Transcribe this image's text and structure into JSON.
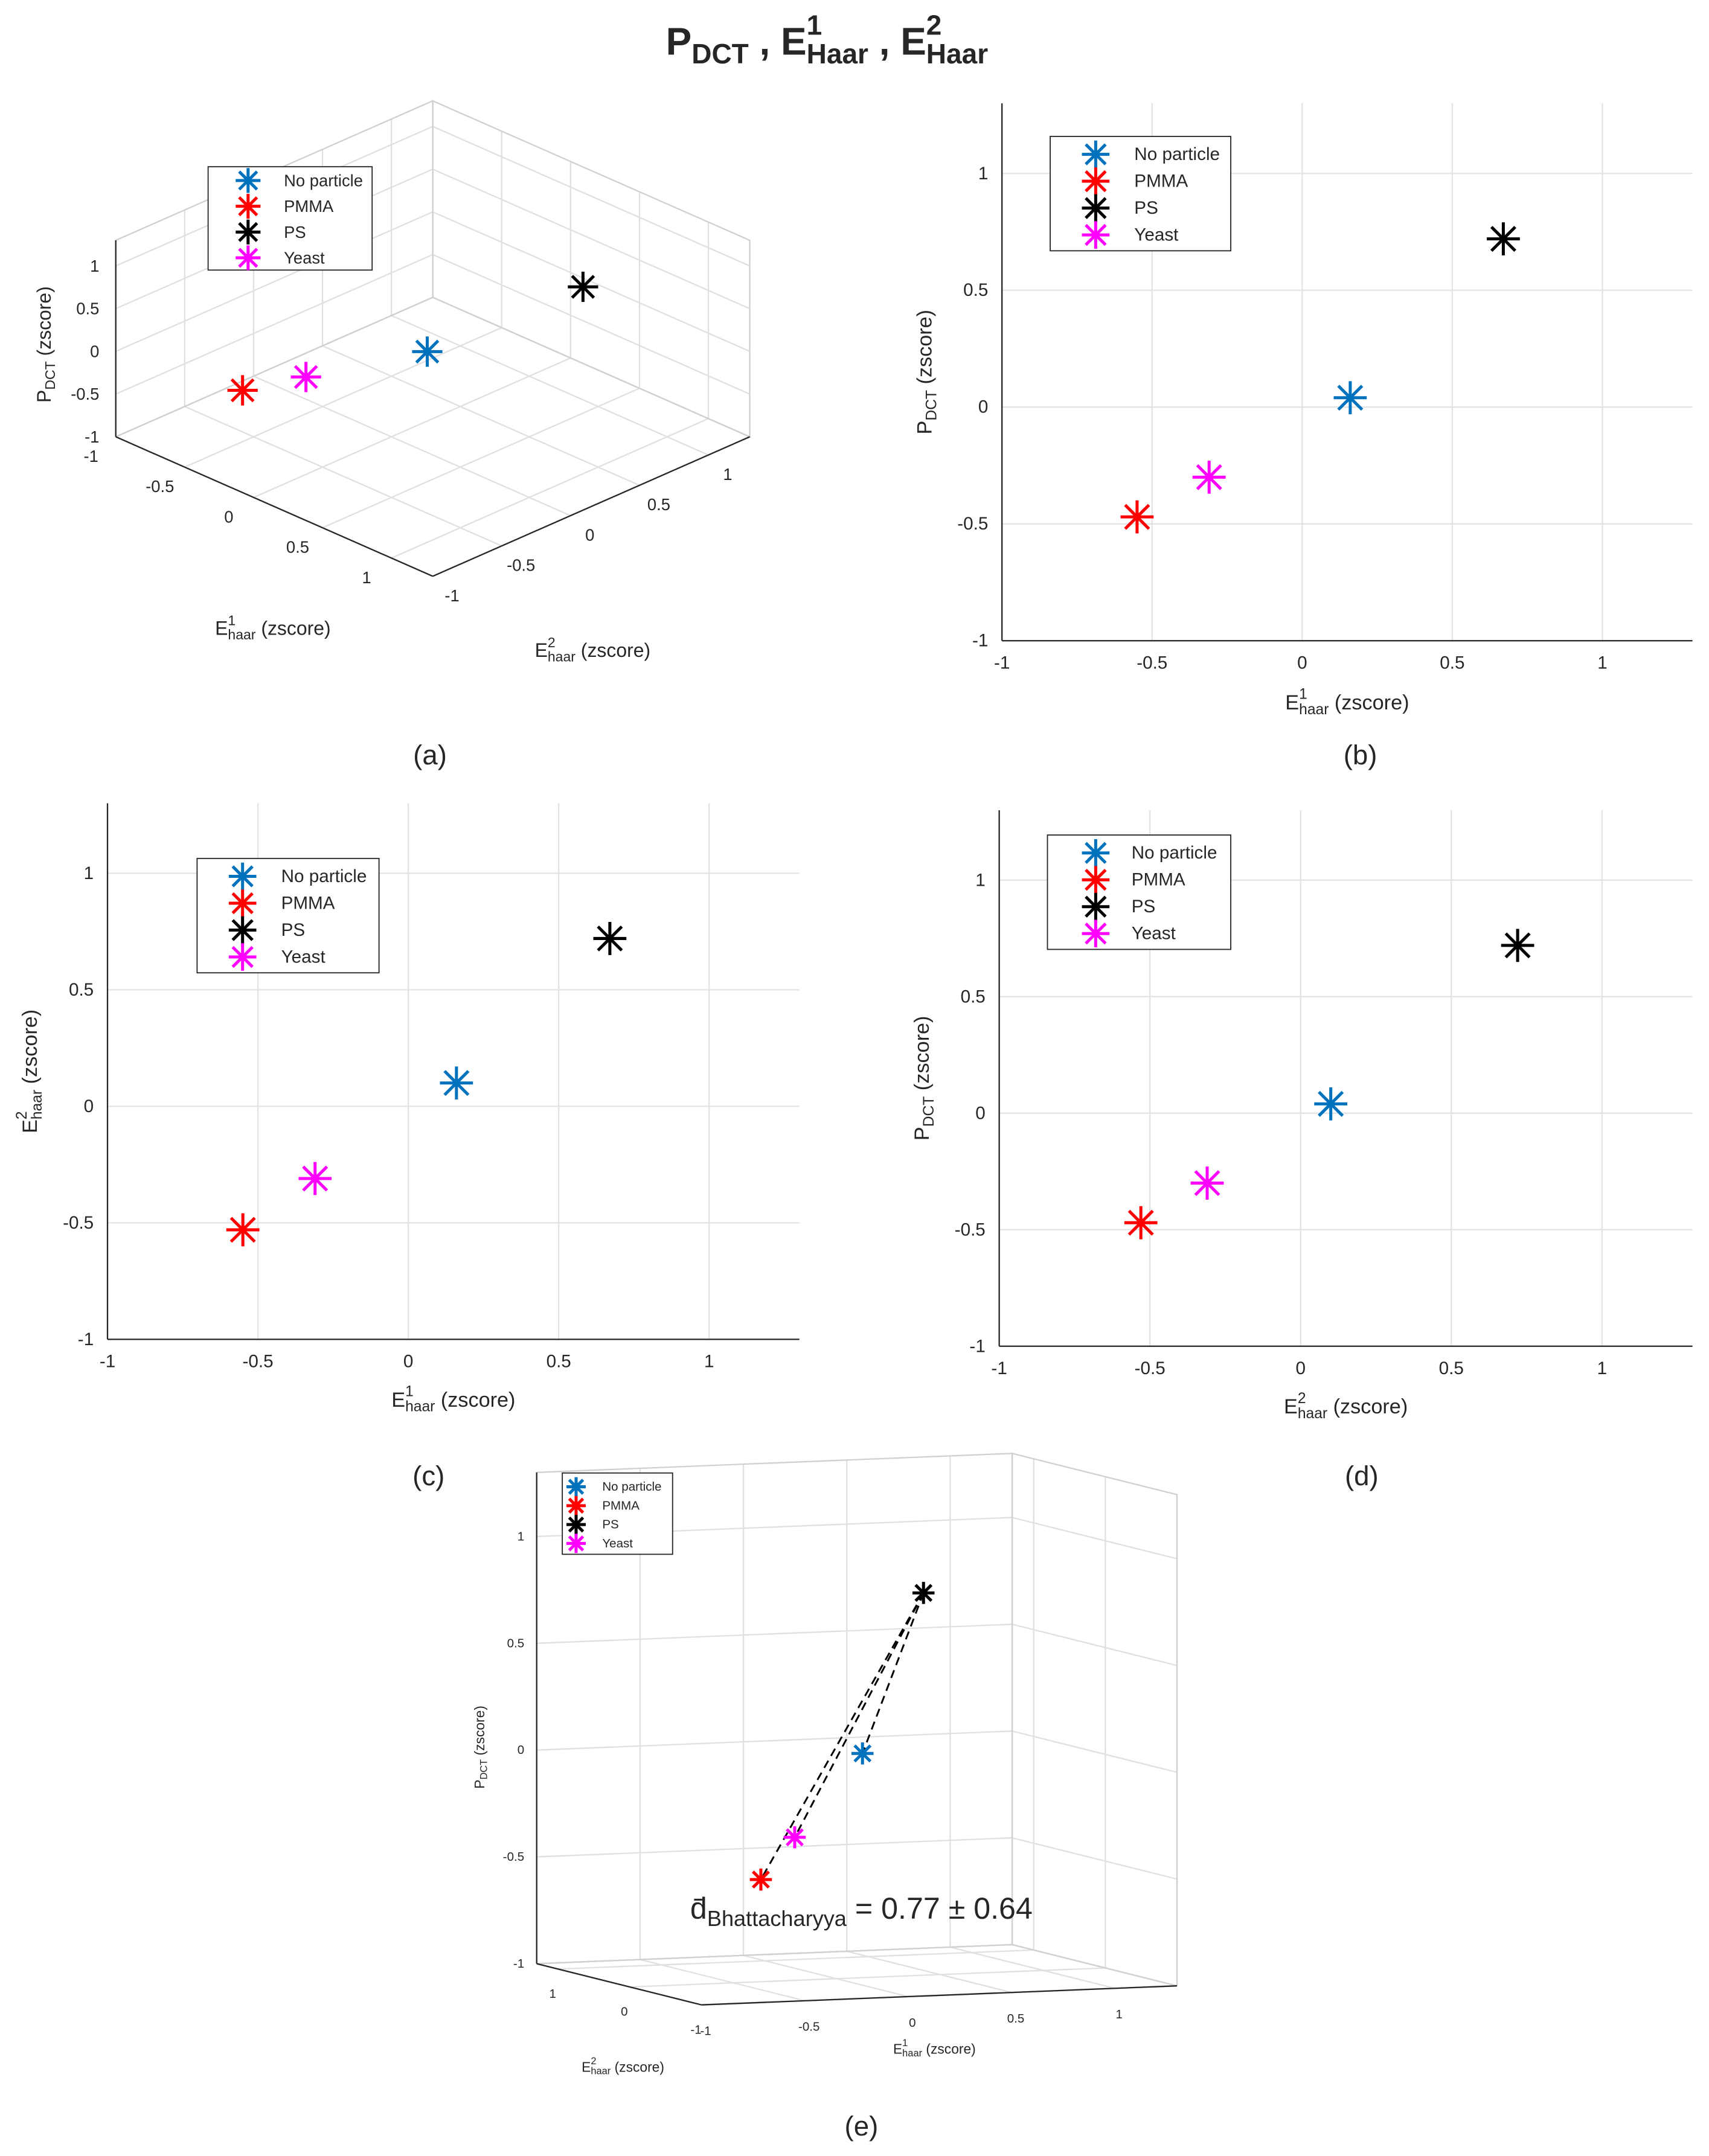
{
  "title": [
    {
      "text": "P"
    },
    {
      "text": "DCT",
      "pos": "sub"
    },
    {
      "text": " , E"
    },
    {
      "text": "1",
      "pos": "sup"
    },
    {
      "text": "Haar",
      "pos": "sub"
    },
    {
      "text": " , E"
    },
    {
      "text": "2",
      "pos": "sup"
    },
    {
      "text": "Haar",
      "pos": "sub"
    }
  ],
  "chart_data": [
    {
      "type": "scatter3d",
      "label": "(a)",
      "xlabel": [
        {
          "text": "E"
        },
        {
          "text": "1",
          "pos": "sup"
        },
        {
          "text": "haar",
          "pos": "sub"
        },
        {
          "text": " (zscore)"
        }
      ],
      "ylabel": [
        {
          "text": "E"
        },
        {
          "text": "2",
          "pos": "sup"
        },
        {
          "text": "haar",
          "pos": "sub"
        },
        {
          "text": " (zscore)"
        }
      ],
      "zlabel": [
        {
          "text": "P"
        },
        {
          "text": "DCT",
          "pos": "sub"
        },
        {
          "text": " (zscore)"
        }
      ],
      "xlim": [
        -1,
        1.3
      ],
      "ylim": [
        -1,
        1.3
      ],
      "zlim": [
        -1,
        1.3
      ],
      "xticks": [
        -1,
        -0.5,
        0,
        0.5,
        1
      ],
      "yticks": [
        -1,
        -0.5,
        0,
        0.5,
        1
      ],
      "zticks": [
        -1,
        -0.5,
        0,
        0.5,
        1
      ],
      "grid": true,
      "series": [
        {
          "name": "No particle",
          "color": "#0072bd",
          "x": [
            0.16
          ],
          "y": [
            0.1
          ],
          "z": [
            0.04
          ]
        },
        {
          "name": "PMMA",
          "color": "#ff0000",
          "x": [
            -0.55
          ],
          "y": [
            -0.53
          ],
          "z": [
            -0.47
          ]
        },
        {
          "name": "PS",
          "color": "#000000",
          "x": [
            0.67
          ],
          "y": [
            0.72
          ],
          "z": [
            0.72
          ]
        },
        {
          "name": "Yeast",
          "color": "#ff00ff",
          "x": [
            -0.31
          ],
          "y": [
            -0.31
          ],
          "z": [
            -0.3
          ]
        }
      ]
    },
    {
      "type": "scatter",
      "label": "(b)",
      "xlabel": [
        {
          "text": "E"
        },
        {
          "text": "1",
          "pos": "sup"
        },
        {
          "text": "haar",
          "pos": "sub"
        },
        {
          "text": " (zscore)"
        }
      ],
      "ylabel": [
        {
          "text": "P"
        },
        {
          "text": "DCT",
          "pos": "sub"
        },
        {
          "text": " (zscore)"
        }
      ],
      "xlim": [
        -1,
        1.3
      ],
      "ylim": [
        -1,
        1.3
      ],
      "xticks": [
        -1,
        -0.5,
        0,
        0.5,
        1
      ],
      "yticks": [
        -1,
        -0.5,
        0,
        0.5,
        1
      ],
      "grid": true,
      "series": [
        {
          "name": "No particle",
          "color": "#0072bd",
          "x": [
            0.16
          ],
          "values": [
            0.04
          ]
        },
        {
          "name": "PMMA",
          "color": "#ff0000",
          "x": [
            -0.55
          ],
          "values": [
            -0.47
          ]
        },
        {
          "name": "PS",
          "color": "#000000",
          "x": [
            0.67
          ],
          "values": [
            0.72
          ]
        },
        {
          "name": "Yeast",
          "color": "#ff00ff",
          "x": [
            -0.31
          ],
          "values": [
            -0.3
          ]
        }
      ]
    },
    {
      "type": "scatter",
      "label": "(c)",
      "xlabel": [
        {
          "text": "E"
        },
        {
          "text": "1",
          "pos": "sup"
        },
        {
          "text": "haar",
          "pos": "sub"
        },
        {
          "text": " (zscore)"
        }
      ],
      "ylabel": [
        {
          "text": "E"
        },
        {
          "text": "2",
          "pos": "sup"
        },
        {
          "text": "haar",
          "pos": "sub"
        },
        {
          "text": " (zscore)"
        }
      ],
      "xlim": [
        -1,
        1.3
      ],
      "ylim": [
        -1,
        1.3
      ],
      "xticks": [
        -1,
        -0.5,
        0,
        0.5,
        1
      ],
      "yticks": [
        -1,
        -0.5,
        0,
        0.5,
        1
      ],
      "grid": true,
      "series": [
        {
          "name": "No particle",
          "color": "#0072bd",
          "x": [
            0.16
          ],
          "values": [
            0.1
          ]
        },
        {
          "name": "PMMA",
          "color": "#ff0000",
          "x": [
            -0.55
          ],
          "values": [
            -0.53
          ]
        },
        {
          "name": "PS",
          "color": "#000000",
          "x": [
            0.67
          ],
          "values": [
            0.72
          ]
        },
        {
          "name": "Yeast",
          "color": "#ff00ff",
          "x": [
            -0.31
          ],
          "values": [
            -0.31
          ]
        }
      ]
    },
    {
      "type": "scatter",
      "label": "(d)",
      "xlabel": [
        {
          "text": "E"
        },
        {
          "text": "2",
          "pos": "sup"
        },
        {
          "text": "haar",
          "pos": "sub"
        },
        {
          "text": " (zscore)"
        }
      ],
      "ylabel": [
        {
          "text": "P"
        },
        {
          "text": "DCT",
          "pos": "sub"
        },
        {
          "text": " (zscore)"
        }
      ],
      "xlim": [
        -1,
        1.3
      ],
      "ylim": [
        -1,
        1.3
      ],
      "xticks": [
        -1,
        -0.5,
        0,
        0.5,
        1
      ],
      "yticks": [
        -1,
        -0.5,
        0,
        0.5,
        1
      ],
      "grid": true,
      "series": [
        {
          "name": "No particle",
          "color": "#0072bd",
          "x": [
            0.1
          ],
          "values": [
            0.04
          ]
        },
        {
          "name": "PMMA",
          "color": "#ff0000",
          "x": [
            -0.53
          ],
          "values": [
            -0.47
          ]
        },
        {
          "name": "PS",
          "color": "#000000",
          "x": [
            0.72
          ],
          "values": [
            0.72
          ]
        },
        {
          "name": "Yeast",
          "color": "#ff00ff",
          "x": [
            -0.31
          ],
          "values": [
            -0.3
          ]
        }
      ]
    },
    {
      "type": "scatter3d",
      "label": "(e)",
      "xlabel": [
        {
          "text": "E"
        },
        {
          "text": "1",
          "pos": "sup"
        },
        {
          "text": "haar",
          "pos": "sub"
        },
        {
          "text": " (zscore)"
        }
      ],
      "ylabel": [
        {
          "text": "E"
        },
        {
          "text": "2",
          "pos": "sup"
        },
        {
          "text": "haar",
          "pos": "sub"
        },
        {
          "text": " (zscore)"
        }
      ],
      "zlabel": [
        {
          "text": "P"
        },
        {
          "text": "DCT",
          "pos": "sub"
        },
        {
          "text": " (zscore)"
        }
      ],
      "xlim": [
        -1,
        1.3
      ],
      "ylim": [
        -1,
        1.3
      ],
      "zlim": [
        -1,
        1.3
      ],
      "xticks": [
        -1,
        -0.5,
        0,
        0.5,
        1
      ],
      "yticks": [
        -1,
        0,
        1
      ],
      "zticks": [
        -1,
        -0.5,
        0,
        0.5,
        1
      ],
      "grid": true,
      "annotation": [
        {
          "text": "d̄"
        },
        {
          "text": "Bhattacharyya",
          "pos": "sub"
        },
        {
          "text": " = 0.77 ± 0.64"
        }
      ],
      "series": [
        {
          "name": "No particle",
          "color": "#0072bd",
          "x": [
            0.16
          ],
          "y": [
            0.1
          ],
          "z": [
            0.04
          ]
        },
        {
          "name": "PMMA",
          "color": "#ff0000",
          "x": [
            -0.55
          ],
          "y": [
            -0.53
          ],
          "z": [
            -0.47
          ]
        },
        {
          "name": "PS",
          "color": "#000000",
          "x": [
            0.67
          ],
          "y": [
            0.72
          ],
          "z": [
            0.72
          ]
        },
        {
          "name": "Yeast",
          "color": "#ff00ff",
          "x": [
            -0.31
          ],
          "y": [
            -0.31
          ],
          "z": [
            -0.3
          ]
        }
      ]
    }
  ]
}
